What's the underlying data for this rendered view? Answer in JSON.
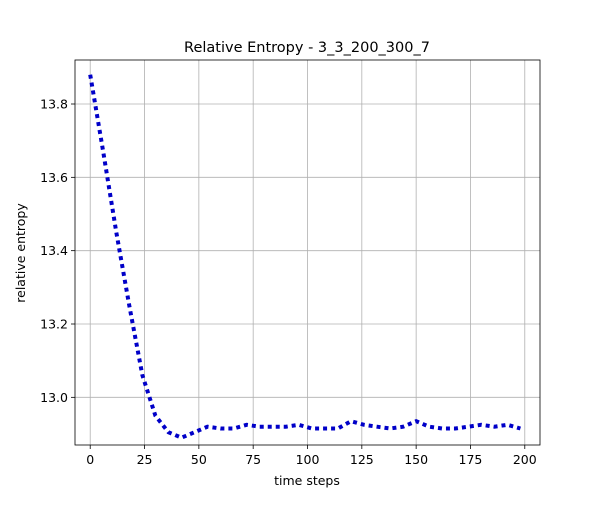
{
  "chart_data": {
    "type": "line",
    "title": "Relative Entropy - 3_3_200_300_7",
    "xlabel": "time steps",
    "ylabel": "relative entropy",
    "xlim": [
      -7,
      207
    ],
    "ylim": [
      12.87,
      13.92
    ],
    "xticks": [
      0,
      25,
      50,
      75,
      100,
      125,
      150,
      175,
      200
    ],
    "yticks": [
      13.0,
      13.2,
      13.4,
      13.6,
      13.8
    ],
    "ytick_labels": [
      "13.0",
      "13.2",
      "13.4",
      "13.6",
      "13.8"
    ],
    "grid": true,
    "line_style": "dotted",
    "series_color": "#0000c8",
    "series": [
      {
        "x": [
          0,
          6,
          12,
          18,
          24,
          30,
          36,
          42,
          48,
          54,
          60,
          66,
          72,
          78,
          84,
          90,
          96,
          102,
          108,
          114,
          120,
          126,
          132,
          138,
          144,
          150,
          156,
          162,
          168,
          174,
          180,
          186,
          192,
          198
        ],
        "values": [
          13.88,
          13.67,
          13.45,
          13.25,
          13.06,
          12.95,
          12.905,
          12.89,
          12.905,
          12.92,
          12.915,
          12.915,
          12.925,
          12.92,
          12.92,
          12.92,
          12.925,
          12.915,
          12.915,
          12.915,
          12.935,
          12.925,
          12.92,
          12.915,
          12.92,
          12.935,
          12.92,
          12.915,
          12.915,
          12.92,
          12.925,
          12.92,
          12.925,
          12.915
        ]
      }
    ]
  }
}
